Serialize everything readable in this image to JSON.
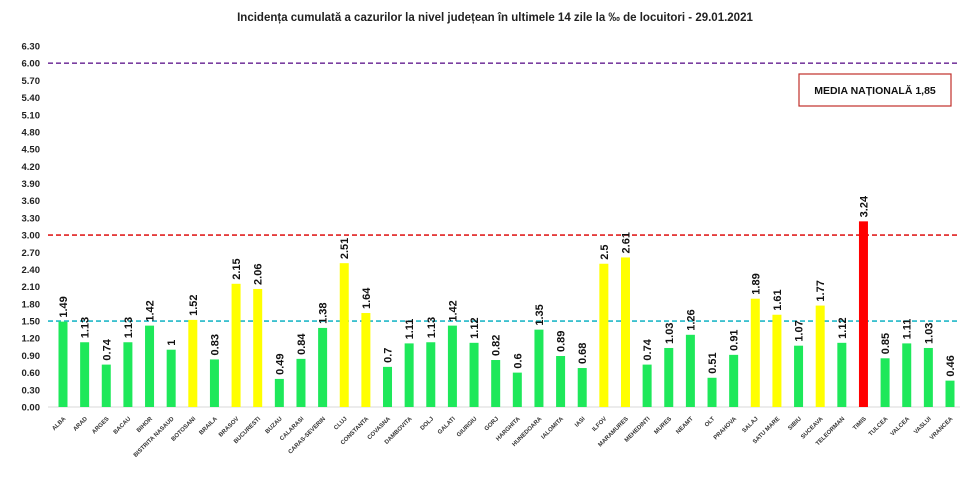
{
  "chart_data": {
    "type": "bar",
    "title": "Incidența cumulată a cazurilor la nivel județean în ultimele 14 zile la ‰ de locuitori - 29.01.2021",
    "xlabel": "",
    "ylabel": "",
    "ylim": [
      0,
      6.3
    ],
    "yticks": [
      "0.00",
      "0.30",
      "0.60",
      "0.90",
      "1.20",
      "1.50",
      "1.80",
      "2.10",
      "2.40",
      "2.70",
      "3.00",
      "3.30",
      "3.60",
      "3.90",
      "4.20",
      "4.50",
      "4.80",
      "5.10",
      "5.40",
      "5.70",
      "6.00",
      "6.30"
    ],
    "grid": false,
    "categories": [
      "ALBA",
      "ARAD",
      "ARGES",
      "BACAU",
      "BIHOR",
      "BISTRITA NASAUD",
      "BOTOSANI",
      "BRAILA",
      "BRASOV",
      "BUCURESTI",
      "BUZAU",
      "CALARASI",
      "CARAS-SEVERIN",
      "CLUJ",
      "CONSTANTA",
      "COVASNA",
      "DAMBOVITA",
      "DOLJ",
      "GALATI",
      "GIURGIU",
      "GORJ",
      "HARGHITA",
      "HUNEDOARA",
      "IALOMITA",
      "IASI",
      "ILFOV",
      "MARAMURES",
      "MEHEDINTI",
      "MURES",
      "NEAMT",
      "OLT",
      "PRAHOVA",
      "SALAJ",
      "SATU MARE",
      "SIBIU",
      "SUCEAVA",
      "TELEORMAN",
      "TIMIS",
      "TULCEA",
      "VALCEA",
      "VASLUI",
      "VRANCEA"
    ],
    "values": [
      1.49,
      1.13,
      0.74,
      1.13,
      1.42,
      1,
      1.52,
      0.83,
      2.15,
      2.06,
      0.49,
      0.84,
      1.38,
      2.51,
      1.64,
      0.7,
      1.11,
      1.13,
      1.42,
      1.12,
      0.82,
      0.6,
      1.35,
      0.89,
      0.68,
      2.5,
      2.61,
      0.74,
      1.03,
      1.26,
      0.51,
      0.91,
      1.89,
      1.61,
      1.07,
      1.77,
      1.12,
      3.24,
      0.85,
      1.11,
      1.03,
      0.46
    ],
    "data_labels": [
      "1.49",
      "1.13",
      "0.74",
      "1.13",
      "1.42",
      "1",
      "1.52",
      "0.83",
      "2.15",
      "2.06",
      "0.49",
      "0.84",
      "1.38",
      "2.51",
      "1.64",
      "0.7",
      "1.11",
      "1.13",
      "1.42",
      "1.12",
      "0.82",
      "0.6",
      "1.35",
      "0.89",
      "0.68",
      "2.5",
      "2.61",
      "0.74",
      "1.03",
      "1.26",
      "0.51",
      "0.91",
      "1.89",
      "1.61",
      "1.07",
      "1.77",
      "1.12",
      "3.24",
      "0.85",
      "1.11",
      "1.03",
      "0.46"
    ],
    "thresholds": [
      {
        "value": 6.0,
        "color": "#7a3fa0",
        "style": "dashed"
      },
      {
        "value": 3.0,
        "color": "#e02020",
        "style": "dashed"
      },
      {
        "value": 1.5,
        "color": "#20b8c8",
        "style": "dashed"
      }
    ],
    "colors": {
      "low": "#1ee85a",
      "medium": "#ffff00",
      "high": "#ff0000"
    },
    "annotation": "MEDIA NAȚIONALĂ  1,85",
    "annotation_border": "#c0302a"
  }
}
